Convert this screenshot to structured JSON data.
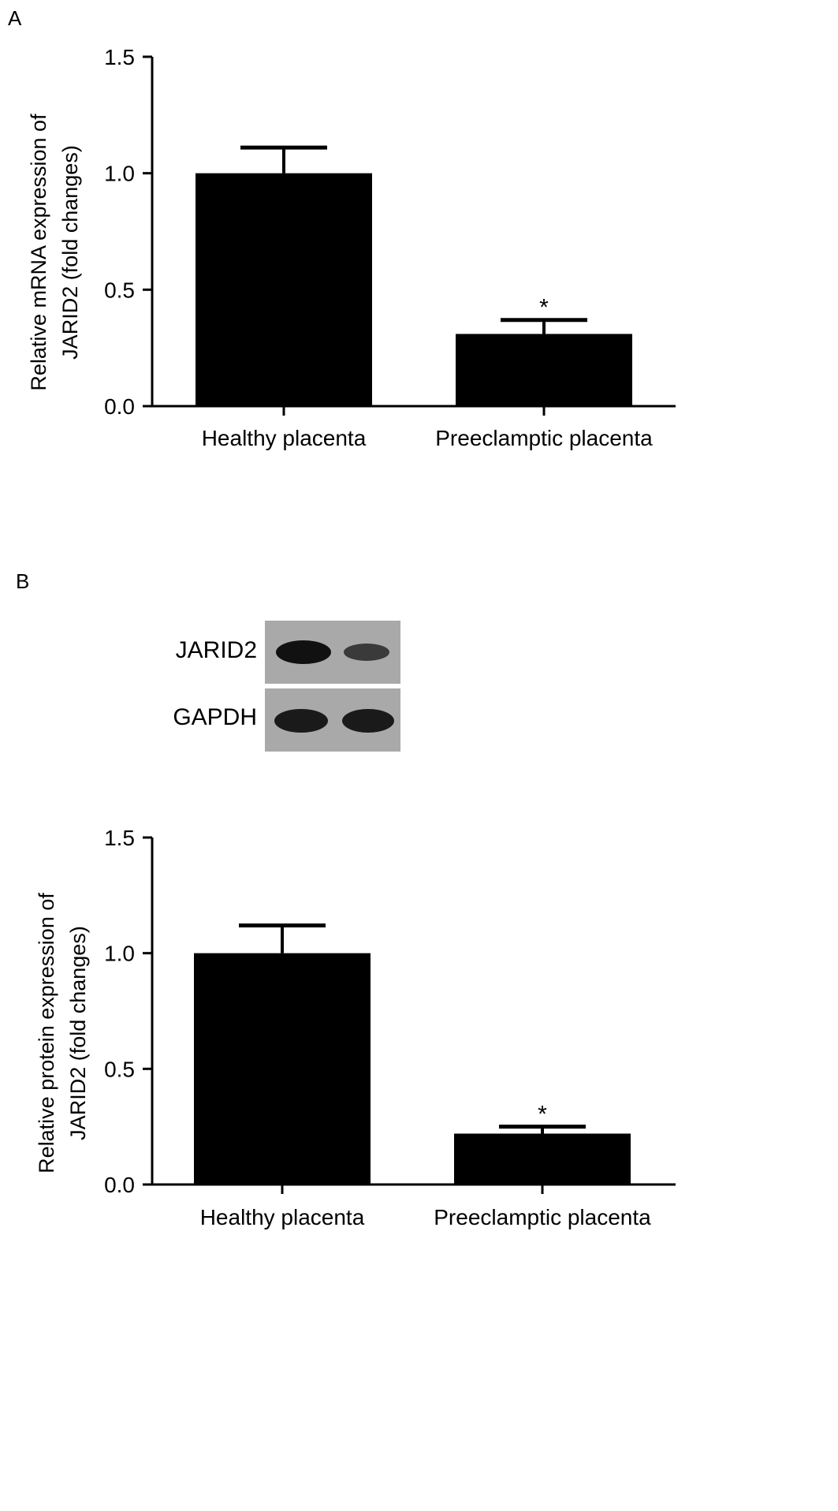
{
  "panels": [
    {
      "letter": "A"
    },
    {
      "letter": "B"
    }
  ],
  "western_blot": {
    "rows": [
      {
        "label": "JARID2",
        "band_intensity": [
          0.95,
          0.6
        ]
      },
      {
        "label": "GAPDH",
        "band_intensity": [
          0.9,
          0.9
        ]
      }
    ]
  },
  "chart_data": [
    {
      "type": "bar",
      "categories": [
        "Healthy placenta",
        "Preeclamptic placenta"
      ],
      "values": [
        1.0,
        0.31
      ],
      "error": [
        0.11,
        0.06
      ],
      "significance": [
        "",
        "*"
      ],
      "ylabel": [
        "Relative mRNA expression of",
        "JARID2 (fold changes)"
      ],
      "ylim": [
        0,
        1.5
      ],
      "yticks": [
        "0.0",
        "0.5",
        "1.0",
        "1.5"
      ],
      "bar_color": "#000000"
    },
    {
      "type": "bar",
      "categories": [
        "Healthy placenta",
        "Preeclamptic placenta"
      ],
      "values": [
        1.0,
        0.22
      ],
      "error": [
        0.12,
        0.03
      ],
      "significance": [
        "",
        "*"
      ],
      "ylabel": [
        "Relative protein expression of",
        "JARID2 (fold changes)"
      ],
      "ylim": [
        0,
        1.5
      ],
      "yticks": [
        "0.0",
        "0.5",
        "1.0",
        "1.5"
      ],
      "bar_color": "#000000"
    }
  ]
}
